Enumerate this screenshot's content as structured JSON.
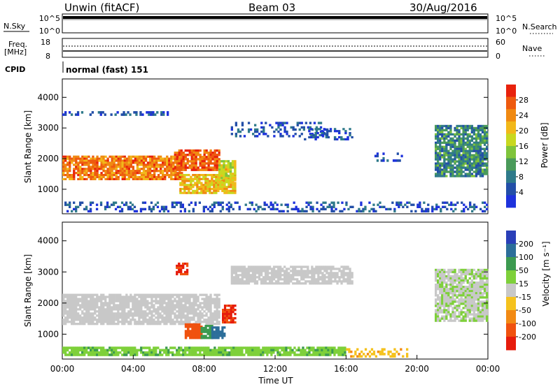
{
  "header": {
    "station": "Unwin (fitACF)",
    "beam": "Beam 03",
    "date": "30/Aug/2016"
  },
  "top_panels": {
    "nsky_label": "N.Sky",
    "nsky_ticks": [
      "10^5",
      "10^0"
    ],
    "nsearch_label": "N.Search",
    "nsearch_ticks": [
      "10^5",
      "10^0"
    ],
    "freq_label": "Freq.",
    "freq_unit": "[MHz]",
    "freq_ticks": [
      "18",
      "8"
    ],
    "nave_label": "Nave",
    "nave_ticks": [
      "60",
      "0"
    ],
    "cpid_label": "CPID",
    "cpid_value": "normal (fast) 151"
  },
  "colors": {
    "power_scale": [
      "#1e32dc",
      "#234fa8",
      "#2f7a8a",
      "#4a9a5a",
      "#7fc43b",
      "#c8d820",
      "#f2b81a",
      "#f08a12",
      "#ee5a0f",
      "#e8220c"
    ],
    "velocity_scale": [
      "#e61c0c",
      "#f0520f",
      "#f28a14",
      "#f5c21e",
      "#c8c8c8",
      "#7ed03a",
      "#3c9a50",
      "#2c6e9a",
      "#2a3fb8"
    ]
  },
  "chart_data": [
    {
      "type": "heatmap",
      "name": "power",
      "ylabel": "Slant Range [km]",
      "colorbar_label": "Power [dB]",
      "colorbar_ticks": [
        "28",
        "24",
        "20",
        "16",
        "12",
        "8",
        "4"
      ],
      "xlim": [
        0,
        24
      ],
      "ylim": [
        200,
        4600
      ],
      "y_ticks": [
        "4000",
        "3000",
        "2000",
        "1000"
      ],
      "y_tick_values": [
        4000,
        3000,
        2000,
        1000
      ],
      "regions": [
        {
          "x": [
            0,
            6.8
          ],
          "y": [
            1300,
            2100
          ],
          "value": 24
        },
        {
          "x": [
            6.3,
            8.9
          ],
          "y": [
            1600,
            2300
          ],
          "value": 26
        },
        {
          "x": [
            6.6,
            9.8
          ],
          "y": [
            850,
            1500
          ],
          "value": 20
        },
        {
          "x": [
            8.8,
            9.8
          ],
          "y": [
            1200,
            1950
          ],
          "value": 18
        },
        {
          "x": [
            9.5,
            15
          ],
          "y": [
            2700,
            3200
          ],
          "value": 6
        },
        {
          "x": [
            13.5,
            16.4
          ],
          "y": [
            2600,
            3000
          ],
          "value": 6
        },
        {
          "x": [
            0,
            6
          ],
          "y": [
            3400,
            3550
          ],
          "value": 6
        },
        {
          "x": [
            21,
            24
          ],
          "y": [
            1400,
            3100
          ],
          "value": 10
        },
        {
          "x": [
            17.6,
            19.2
          ],
          "y": [
            1900,
            2200
          ],
          "value": 5
        },
        {
          "x": [
            0,
            24
          ],
          "y": [
            250,
            600
          ],
          "value": 6
        }
      ]
    },
    {
      "type": "heatmap",
      "name": "velocity",
      "ylabel": "Slant Range [km]",
      "xlabel": "Time UT",
      "colorbar_label": "Velocity [m s⁻¹]",
      "colorbar_ticks": [
        "200",
        "100",
        "50",
        "15",
        "-15",
        "-50",
        "-100",
        "-200"
      ],
      "xlim": [
        0,
        24
      ],
      "ylim": [
        200,
        4600
      ],
      "x_ticks": [
        "00:00",
        "04:00",
        "08:00",
        "12:00",
        "16:00",
        "20:00",
        "00:00"
      ],
      "x_tick_values": [
        0,
        4,
        8,
        12,
        16,
        20,
        24
      ],
      "y_ticks": [
        "4000",
        "3000",
        "2000",
        "1000"
      ],
      "y_tick_values": [
        4000,
        3000,
        2000,
        1000
      ],
      "regions": [
        {
          "x": [
            0,
            8.9
          ],
          "y": [
            1300,
            2300
          ],
          "value": 0
        },
        {
          "x": [
            6.4,
            7.1
          ],
          "y": [
            2900,
            3300
          ],
          "value": -200
        },
        {
          "x": [
            6.9,
            7.9
          ],
          "y": [
            850,
            1350
          ],
          "value": -150
        },
        {
          "x": [
            7.8,
            8.5
          ],
          "y": [
            850,
            1300
          ],
          "value": 80
        },
        {
          "x": [
            8.4,
            9.2
          ],
          "y": [
            850,
            1250
          ],
          "value": 150
        },
        {
          "x": [
            9.0,
            9.8
          ],
          "y": [
            1350,
            1950
          ],
          "value": -200
        },
        {
          "x": [
            9.5,
            16.4
          ],
          "y": [
            2600,
            3200
          ],
          "value": 0
        },
        {
          "x": [
            21,
            24
          ],
          "y": [
            1400,
            3100
          ],
          "value": 10
        },
        {
          "x": [
            0,
            16
          ],
          "y": [
            300,
            600
          ],
          "value": 40
        },
        {
          "x": [
            16,
            19.5
          ],
          "y": [
            250,
            550
          ],
          "value": -40
        }
      ]
    }
  ]
}
